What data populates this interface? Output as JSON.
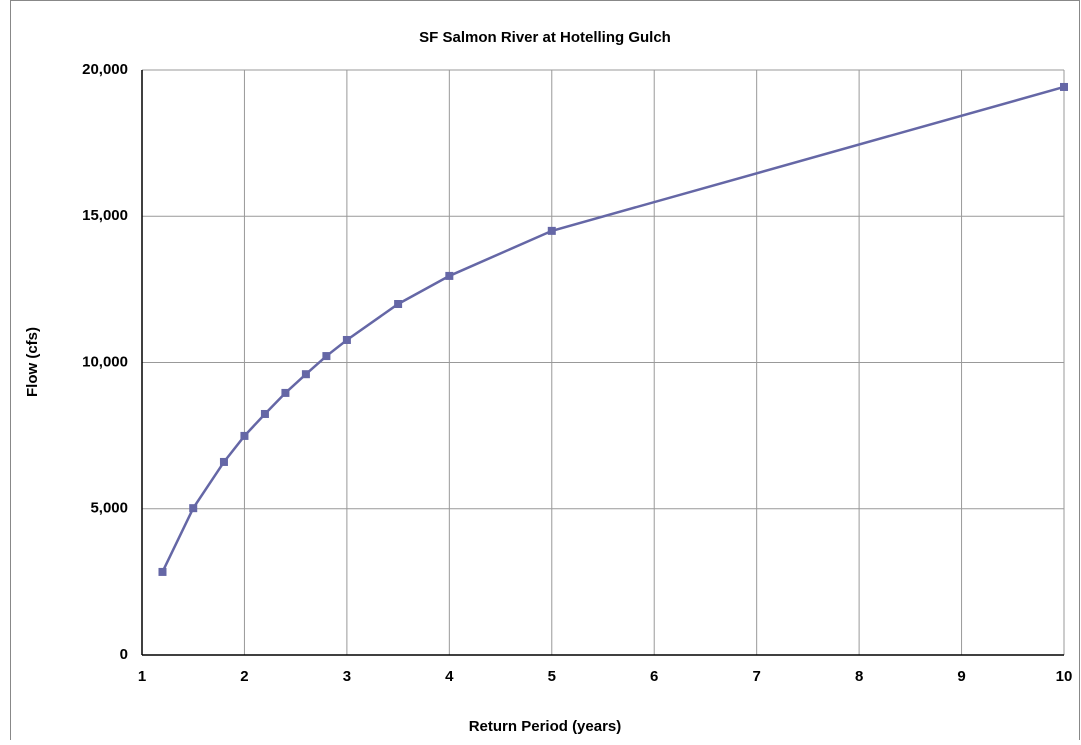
{
  "chart_data": {
    "type": "line",
    "title": "SF Salmon River at Hotelling Gulch",
    "x_label": "Return Period (years)",
    "y_label": "Flow (cfs)",
    "x": [
      1.2,
      1.5,
      1.8,
      2,
      2.2,
      2.4,
      2.6,
      2.8,
      3,
      3.5,
      4,
      5,
      10
    ],
    "series": [
      {
        "name": "Flow",
        "color": "#6567a6",
        "values": [
          2840,
          5020,
          6600,
          7490,
          8240,
          8960,
          9600,
          10220,
          10770,
          12000,
          12960,
          14500,
          19420
        ]
      }
    ],
    "xlim": [
      1,
      10
    ],
    "xticks": [
      1,
      2,
      3,
      4,
      5,
      6,
      7,
      8,
      9,
      10
    ],
    "ylim": [
      0,
      20000
    ],
    "yticks": [
      0,
      {
        "value": 5000,
        "label": "5,000"
      },
      {
        "value": 10000,
        "label": "10,000"
      },
      {
        "value": 15000,
        "label": "15,000"
      },
      {
        "value": 20000,
        "label": "20,000"
      }
    ],
    "grid": true
  }
}
